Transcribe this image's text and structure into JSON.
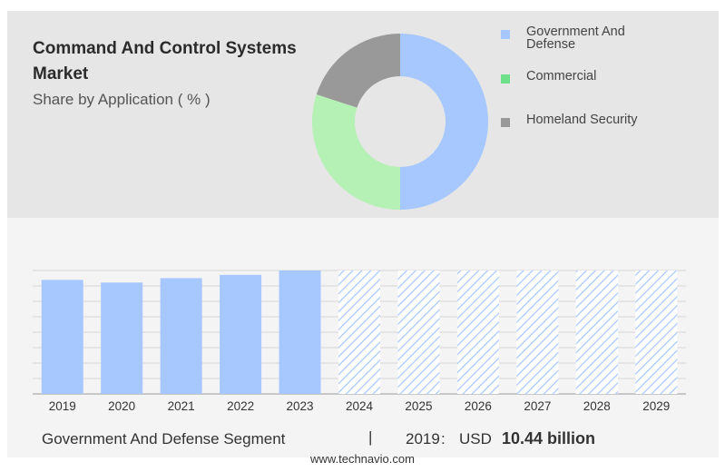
{
  "header": {
    "title": "Command And Control Systems Market",
    "subtitle": "Share by Application ( % )"
  },
  "donut_chart": {
    "type": "pie",
    "segments": [
      {
        "name": "Government And Defense",
        "share": 50,
        "color": "#a7c8ff"
      },
      {
        "name": "Commercial",
        "share": 30,
        "color": "#b5f0b5"
      },
      {
        "name": "Homeland Security",
        "share": 20,
        "color": "#999999"
      }
    ]
  },
  "legend": [
    {
      "label": "Government And Defense",
      "color": "#a7c8ff"
    },
    {
      "label": "Commercial",
      "color": "#6ee08a"
    },
    {
      "label": "Homeland Security",
      "color": "#999999"
    }
  ],
  "chart_data": {
    "type": "bar",
    "categories": [
      "2019",
      "2020",
      "2021",
      "2022",
      "2023",
      "2024",
      "2025",
      "2026",
      "2027",
      "2028",
      "2029"
    ],
    "values": [
      10.44,
      10.2,
      10.6,
      10.9,
      11.3,
      null,
      null,
      null,
      null,
      null,
      null
    ],
    "forecast_from": "2024",
    "color": "#a7c8ff",
    "ylim": [
      0,
      11.3
    ],
    "grid": true
  },
  "footer": {
    "segment_label": "Government And Defense Segment",
    "separator": "|",
    "year": "2019",
    "colon": ":",
    "unit": "USD",
    "value": "10.44 billion"
  },
  "website": "www.technavio.com"
}
